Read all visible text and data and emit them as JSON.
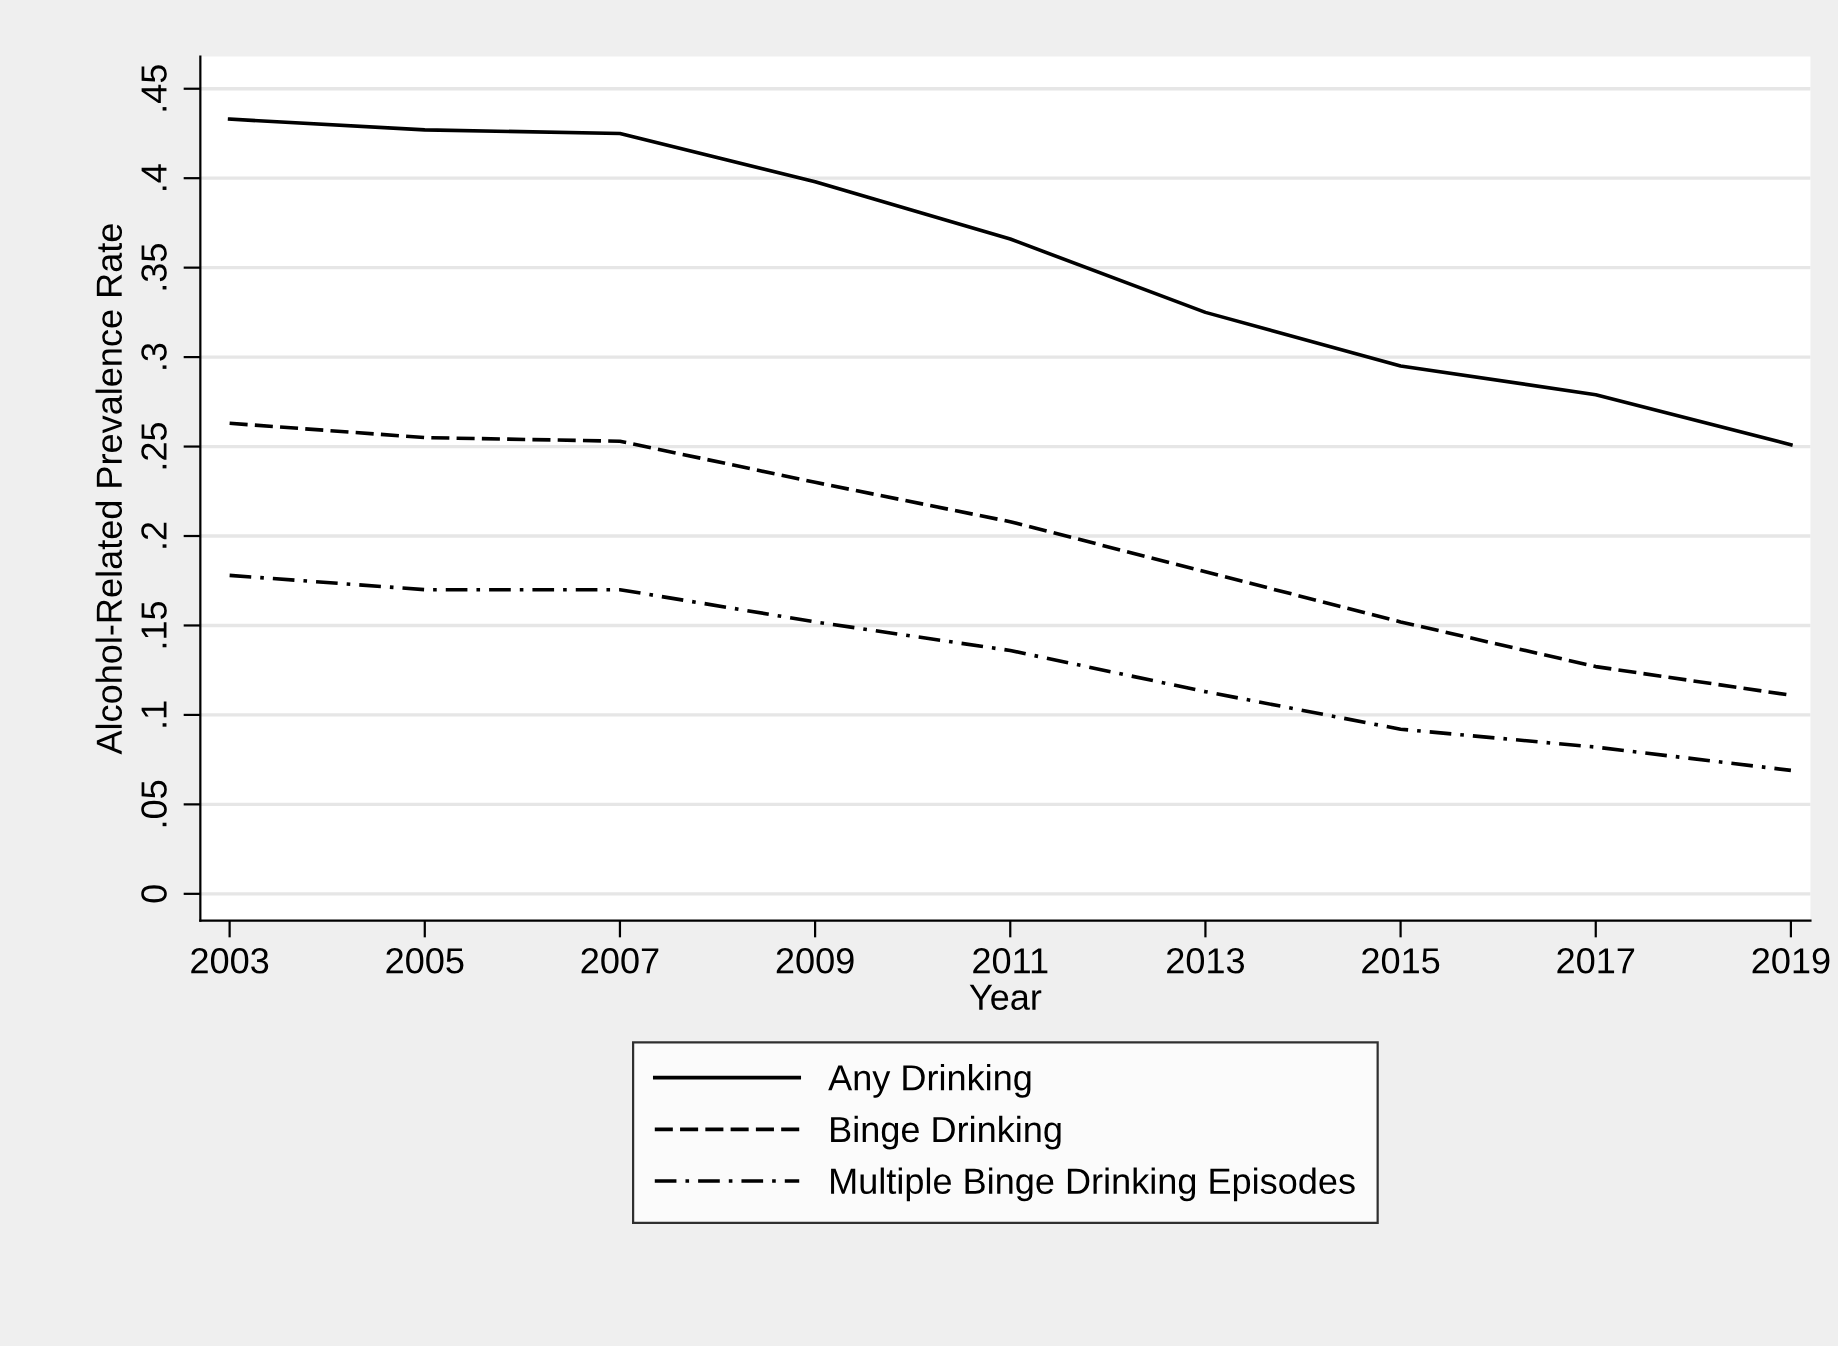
{
  "chart_data": {
    "type": "line",
    "xlabel": "Year",
    "ylabel": "Alcohol-Related Prevalence Rate",
    "x": [
      2003,
      2005,
      2007,
      2009,
      2011,
      2013,
      2015,
      2017,
      2019
    ],
    "series": [
      {
        "name": "Any Drinking",
        "color": "#000000",
        "line_style": "solid",
        "values": [
          0.433,
          0.427,
          0.425,
          0.398,
          0.366,
          0.325,
          0.295,
          0.279,
          0.251
        ]
      },
      {
        "name": "Binge Drinking",
        "color": "#000000",
        "line_style": "dashed",
        "values": [
          0.263,
          0.255,
          0.253,
          0.23,
          0.208,
          0.18,
          0.152,
          0.127,
          0.111
        ]
      },
      {
        "name": "Multiple Binge Drinking Episodes",
        "color": "#000000",
        "line_style": "dashdot",
        "values": [
          0.178,
          0.17,
          0.17,
          0.152,
          0.136,
          0.113,
          0.092,
          0.082,
          0.069
        ]
      }
    ],
    "xlim": [
      2002.7,
      2019.2
    ],
    "xticks": [
      2003,
      2005,
      2007,
      2009,
      2011,
      2013,
      2015,
      2017,
      2019
    ],
    "ylim": [
      -0.015,
      0.468
    ],
    "yticks": [
      {
        "value": 0,
        "label": "0"
      },
      {
        "value": 0.05,
        "label": ".05"
      },
      {
        "value": 0.1,
        "label": ".1"
      },
      {
        "value": 0.15,
        "label": ".15"
      },
      {
        "value": 0.2,
        "label": ".2"
      },
      {
        "value": 0.25,
        "label": ".25"
      },
      {
        "value": 0.3,
        "label": ".3"
      },
      {
        "value": 0.35,
        "label": ".35"
      },
      {
        "value": 0.4,
        "label": ".4"
      },
      {
        "value": 0.45,
        "label": ".45"
      }
    ],
    "grid": "y",
    "legend": "bottom",
    "marker": "none"
  }
}
